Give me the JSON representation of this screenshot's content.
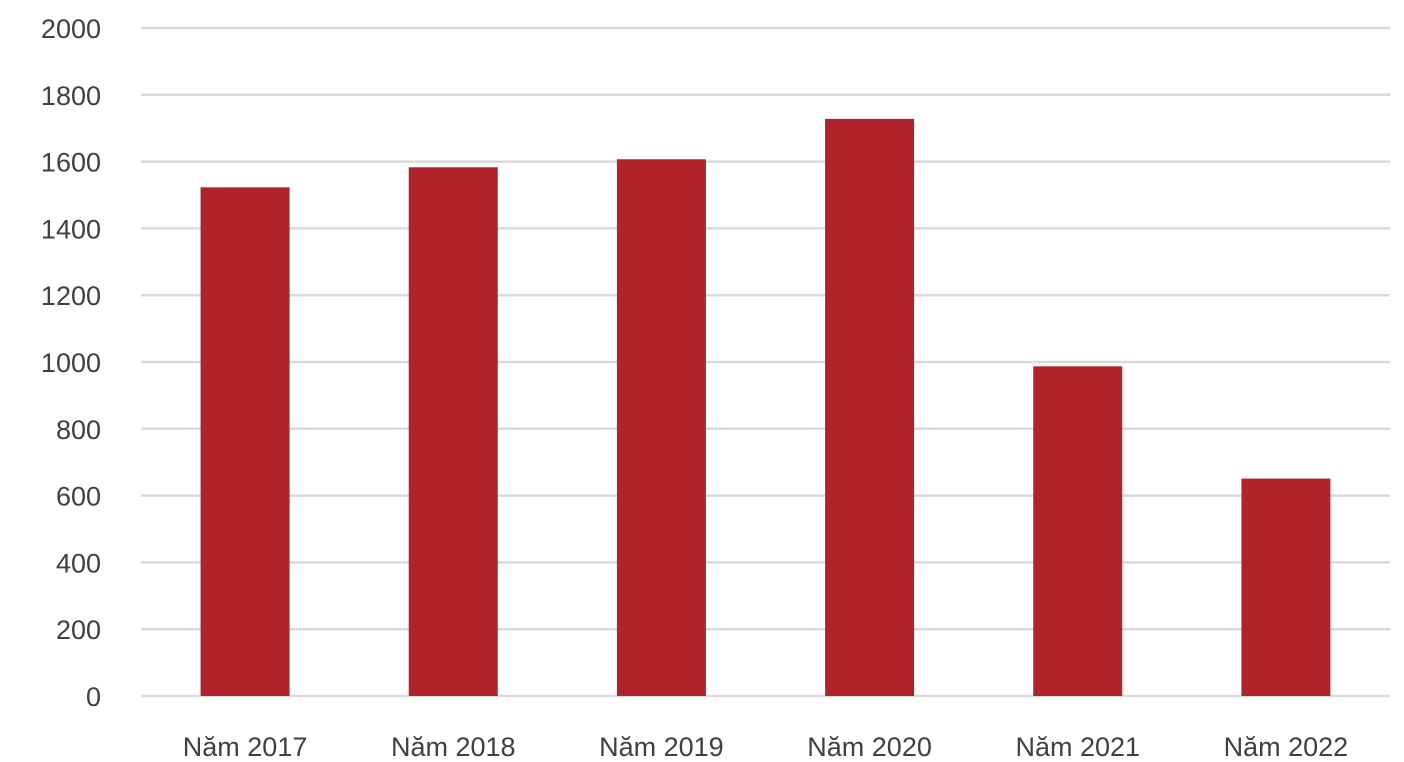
{
  "chart_data": {
    "type": "bar",
    "title": "",
    "xlabel": "",
    "ylabel": "",
    "categories": [
      "Năm 2017",
      "Năm 2018",
      "Năm 2019",
      "Năm 2020",
      "Năm 2021",
      "Năm 2022"
    ],
    "values": [
      1523,
      1583,
      1607,
      1728,
      987,
      651
    ],
    "ylim": [
      0,
      2000
    ],
    "yticks": [
      "0",
      "200",
      "400",
      "600",
      "800",
      "1000",
      "1200",
      "1400",
      "1600",
      "1800",
      "2000"
    ],
    "grid": true,
    "legend": "none",
    "bar_color": "#b0232a",
    "grid_color": "#d9d9d9",
    "text_color": "#404040"
  }
}
